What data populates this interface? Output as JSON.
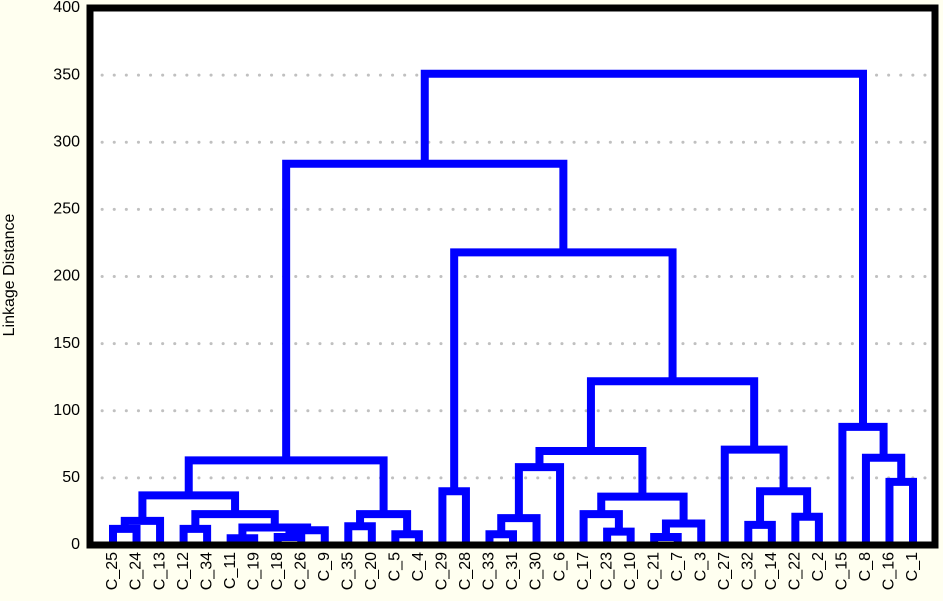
{
  "chart_data": {
    "type": "dendrogram",
    "ylabel": "Linkage Distance",
    "color": "#0000ff",
    "ylim": [
      0,
      400
    ],
    "yticks": [
      0,
      50,
      100,
      150,
      200,
      250,
      300,
      350,
      400
    ],
    "grid": true,
    "tree": {
      "height": 351,
      "children": [
        {
          "height": 284,
          "children": [
            {
              "height": 63,
              "children": [
                {
                  "height": 37,
                  "children": [
                    {
                      "height": 18,
                      "children": [
                        {
                          "height": 12,
                          "children": [
                            {
                              "label": "C_25"
                            },
                            {
                              "label": "C_24"
                            }
                          ]
                        },
                        {
                          "label": "C_13"
                        }
                      ]
                    },
                    {
                      "height": 23,
                      "children": [
                        {
                          "height": 12,
                          "children": [
                            {
                              "label": "C_12"
                            },
                            {
                              "label": "C_34"
                            }
                          ]
                        },
                        {
                          "height": 13,
                          "children": [
                            {
                              "height": 5,
                              "children": [
                                {
                                  "label": "C_11"
                                },
                                {
                                  "label": "C_19"
                                }
                              ]
                            },
                            {
                              "height": 11,
                              "children": [
                                {
                                  "height": 6,
                                  "children": [
                                    {
                                      "label": "C_18"
                                    },
                                    {
                                      "label": "C_26"
                                    }
                                  ]
                                },
                                {
                                  "label": "C_9"
                                }
                              ]
                            }
                          ]
                        }
                      ]
                    }
                  ]
                },
                {
                  "height": 23,
                  "children": [
                    {
                      "height": 14,
                      "children": [
                        {
                          "label": "C_35"
                        },
                        {
                          "label": "C_20"
                        }
                      ]
                    },
                    {
                      "height": 8,
                      "children": [
                        {
                          "label": "C_5"
                        },
                        {
                          "label": "C_4"
                        }
                      ]
                    }
                  ]
                }
              ]
            },
            {
              "height": 218,
              "children": [
                {
                  "height": 40,
                  "children": [
                    {
                      "label": "C_29"
                    },
                    {
                      "label": "C_28"
                    }
                  ]
                },
                {
                  "height": 122,
                  "children": [
                    {
                      "height": 70,
                      "children": [
                        {
                          "height": 58,
                          "children": [
                            {
                              "height": 20,
                              "children": [
                                {
                                  "height": 8,
                                  "children": [
                                    {
                                      "label": "C_33"
                                    },
                                    {
                                      "label": "C_31"
                                    }
                                  ]
                                },
                                {
                                  "label": "C_30"
                                }
                              ]
                            },
                            {
                              "label": "C_6"
                            }
                          ]
                        },
                        {
                          "height": 36,
                          "children": [
                            {
                              "height": 23,
                              "children": [
                                {
                                  "label": "C_17"
                                },
                                {
                                  "height": 10,
                                  "children": [
                                    {
                                      "label": "C_23"
                                    },
                                    {
                                      "label": "C_10"
                                    }
                                  ]
                                }
                              ]
                            },
                            {
                              "height": 16,
                              "children": [
                                {
                                  "height": 6,
                                  "children": [
                                    {
                                      "label": "C_21"
                                    },
                                    {
                                      "label": "C_7"
                                    }
                                  ]
                                },
                                {
                                  "label": "C_3"
                                }
                              ]
                            }
                          ]
                        }
                      ]
                    },
                    {
                      "height": 71,
                      "children": [
                        {
                          "label": "C_27"
                        },
                        {
                          "height": 40,
                          "children": [
                            {
                              "height": 15,
                              "children": [
                                {
                                  "label": "C_32"
                                },
                                {
                                  "label": "C_14"
                                }
                              ]
                            },
                            {
                              "height": 21,
                              "children": [
                                {
                                  "label": "C_22"
                                },
                                {
                                  "label": "C_2"
                                }
                              ]
                            }
                          ]
                        }
                      ]
                    }
                  ]
                }
              ]
            }
          ]
        },
        {
          "height": 88,
          "children": [
            {
              "label": "C_15"
            },
            {
              "height": 65,
              "children": [
                {
                  "label": "C_8"
                },
                {
                  "height": 47,
                  "children": [
                    {
                      "label": "C_16"
                    },
                    {
                      "label": "C_1"
                    }
                  ]
                }
              ]
            }
          ]
        }
      ]
    }
  }
}
